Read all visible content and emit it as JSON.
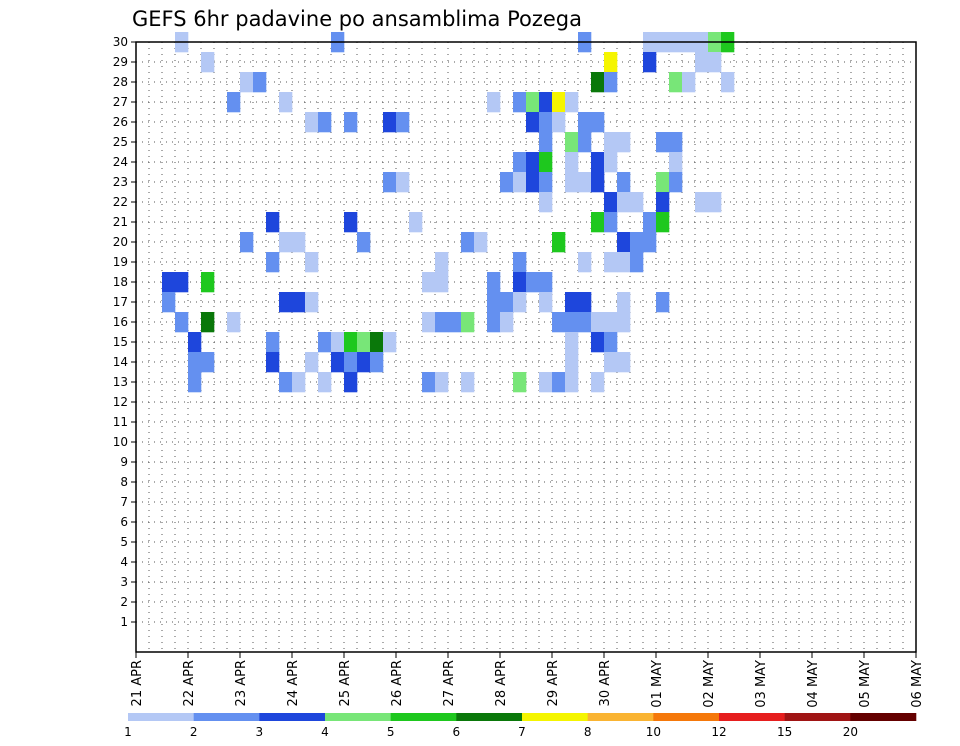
{
  "chart_data": {
    "type": "heatmap",
    "title": "GEFS 6hr padavine po ansamblima Pozega",
    "x_tick_labels": [
      "21 APR",
      "22 APR",
      "23 APR",
      "24 APR",
      "25 APR",
      "26 APR",
      "27 APR",
      "28 APR",
      "29 APR",
      "30 APR",
      "01 MAY",
      "02 MAY",
      "03 MAY",
      "04 MAY",
      "05 MAY",
      "06 MAY"
    ],
    "y_tick_labels": [
      "1",
      "2",
      "3",
      "4",
      "5",
      "6",
      "7",
      "8",
      "9",
      "10",
      "11",
      "12",
      "13",
      "14",
      "15",
      "16",
      "17",
      "18",
      "19",
      "20",
      "21",
      "22",
      "23",
      "24",
      "25",
      "26",
      "27",
      "28",
      "29",
      "30"
    ],
    "x_range_days": [
      0,
      15
    ],
    "time_step_hours": 6,
    "members_range": [
      0,
      30
    ],
    "grid": "dotted",
    "colorbar": {
      "levels": [
        "1",
        "2",
        "3",
        "4",
        "5",
        "6",
        "7",
        "8",
        "10",
        "12",
        "15",
        "20"
      ],
      "colors": [
        "#b4c8f5",
        "#6490f0",
        "#1e46dc",
        "#78e678",
        "#1ec81e",
        "#0a780a",
        "#f5f500",
        "#fab432",
        "#f5780a",
        "#e61e1e",
        "#a01414",
        "#640000"
      ]
    },
    "cells": [
      {
        "x": 3,
        "y": 30,
        "c": 0
      },
      {
        "x": 15,
        "y": 30,
        "c": 1
      },
      {
        "x": 34,
        "y": 30,
        "c": 1
      },
      {
        "x": 39,
        "y": 30,
        "c": 0
      },
      {
        "x": 40,
        "y": 30,
        "c": 0
      },
      {
        "x": 41,
        "y": 30,
        "c": 0
      },
      {
        "x": 42,
        "y": 30,
        "c": 0
      },
      {
        "x": 43,
        "y": 30,
        "c": 0
      },
      {
        "x": 44,
        "y": 30,
        "c": 3
      },
      {
        "x": 45,
        "y": 30,
        "c": 4
      },
      {
        "x": 5,
        "y": 29,
        "c": 0
      },
      {
        "x": 36,
        "y": 29,
        "c": 6
      },
      {
        "x": 39,
        "y": 29,
        "c": 2
      },
      {
        "x": 43,
        "y": 29,
        "c": 0
      },
      {
        "x": 44,
        "y": 29,
        "c": 0
      },
      {
        "x": 8,
        "y": 28,
        "c": 0
      },
      {
        "x": 9,
        "y": 28,
        "c": 1
      },
      {
        "x": 35,
        "y": 28,
        "c": 5
      },
      {
        "x": 36,
        "y": 28,
        "c": 1
      },
      {
        "x": 41,
        "y": 28,
        "c": 3
      },
      {
        "x": 42,
        "y": 28,
        "c": 0
      },
      {
        "x": 45,
        "y": 28,
        "c": 0
      },
      {
        "x": 7,
        "y": 27,
        "c": 1
      },
      {
        "x": 11,
        "y": 27,
        "c": 0
      },
      {
        "x": 27,
        "y": 27,
        "c": 0
      },
      {
        "x": 29,
        "y": 27,
        "c": 1
      },
      {
        "x": 30,
        "y": 27,
        "c": 3
      },
      {
        "x": 31,
        "y": 27,
        "c": 2
      },
      {
        "x": 32,
        "y": 27,
        "c": 6
      },
      {
        "x": 33,
        "y": 27,
        "c": 0
      },
      {
        "x": 13,
        "y": 26,
        "c": 0
      },
      {
        "x": 14,
        "y": 26,
        "c": 1
      },
      {
        "x": 16,
        "y": 26,
        "c": 1
      },
      {
        "x": 19,
        "y": 26,
        "c": 2
      },
      {
        "x": 20,
        "y": 26,
        "c": 1
      },
      {
        "x": 30,
        "y": 26,
        "c": 2
      },
      {
        "x": 31,
        "y": 26,
        "c": 1
      },
      {
        "x": 32,
        "y": 26,
        "c": 0
      },
      {
        "x": 34,
        "y": 26,
        "c": 1
      },
      {
        "x": 35,
        "y": 26,
        "c": 1
      },
      {
        "x": 31,
        "y": 25,
        "c": 1
      },
      {
        "x": 33,
        "y": 25,
        "c": 3
      },
      {
        "x": 34,
        "y": 25,
        "c": 1
      },
      {
        "x": 36,
        "y": 25,
        "c": 0
      },
      {
        "x": 37,
        "y": 25,
        "c": 0
      },
      {
        "x": 40,
        "y": 25,
        "c": 1
      },
      {
        "x": 41,
        "y": 25,
        "c": 1
      },
      {
        "x": 29,
        "y": 24,
        "c": 1
      },
      {
        "x": 30,
        "y": 24,
        "c": 2
      },
      {
        "x": 31,
        "y": 24,
        "c": 4
      },
      {
        "x": 33,
        "y": 24,
        "c": 0
      },
      {
        "x": 35,
        "y": 24,
        "c": 2
      },
      {
        "x": 36,
        "y": 24,
        "c": 0
      },
      {
        "x": 41,
        "y": 24,
        "c": 0
      },
      {
        "x": 19,
        "y": 23,
        "c": 1
      },
      {
        "x": 20,
        "y": 23,
        "c": 0
      },
      {
        "x": 28,
        "y": 23,
        "c": 1
      },
      {
        "x": 29,
        "y": 23,
        "c": 0
      },
      {
        "x": 30,
        "y": 23,
        "c": 2
      },
      {
        "x": 31,
        "y": 23,
        "c": 1
      },
      {
        "x": 33,
        "y": 23,
        "c": 0
      },
      {
        "x": 34,
        "y": 23,
        "c": 0
      },
      {
        "x": 35,
        "y": 23,
        "c": 2
      },
      {
        "x": 37,
        "y": 23,
        "c": 1
      },
      {
        "x": 40,
        "y": 23,
        "c": 3
      },
      {
        "x": 41,
        "y": 23,
        "c": 1
      },
      {
        "x": 31,
        "y": 22,
        "c": 0
      },
      {
        "x": 36,
        "y": 22,
        "c": 2
      },
      {
        "x": 37,
        "y": 22,
        "c": 0
      },
      {
        "x": 38,
        "y": 22,
        "c": 0
      },
      {
        "x": 40,
        "y": 22,
        "c": 2
      },
      {
        "x": 43,
        "y": 22,
        "c": 0
      },
      {
        "x": 44,
        "y": 22,
        "c": 0
      },
      {
        "x": 10,
        "y": 21,
        "c": 2
      },
      {
        "x": 16,
        "y": 21,
        "c": 2
      },
      {
        "x": 21,
        "y": 21,
        "c": 0
      },
      {
        "x": 35,
        "y": 21,
        "c": 4
      },
      {
        "x": 36,
        "y": 21,
        "c": 1
      },
      {
        "x": 39,
        "y": 21,
        "c": 1
      },
      {
        "x": 40,
        "y": 21,
        "c": 4
      },
      {
        "x": 8,
        "y": 20,
        "c": 1
      },
      {
        "x": 11,
        "y": 20,
        "c": 0
      },
      {
        "x": 12,
        "y": 20,
        "c": 0
      },
      {
        "x": 17,
        "y": 20,
        "c": 1
      },
      {
        "x": 25,
        "y": 20,
        "c": 1
      },
      {
        "x": 26,
        "y": 20,
        "c": 0
      },
      {
        "x": 32,
        "y": 20,
        "c": 4
      },
      {
        "x": 37,
        "y": 20,
        "c": 2
      },
      {
        "x": 38,
        "y": 20,
        "c": 1
      },
      {
        "x": 39,
        "y": 20,
        "c": 1
      },
      {
        "x": 10,
        "y": 19,
        "c": 1
      },
      {
        "x": 13,
        "y": 19,
        "c": 0
      },
      {
        "x": 23,
        "y": 19,
        "c": 0
      },
      {
        "x": 29,
        "y": 19,
        "c": 1
      },
      {
        "x": 34,
        "y": 19,
        "c": 0
      },
      {
        "x": 36,
        "y": 19,
        "c": 0
      },
      {
        "x": 37,
        "y": 19,
        "c": 0
      },
      {
        "x": 38,
        "y": 19,
        "c": 1
      },
      {
        "x": 2,
        "y": 18,
        "c": 2
      },
      {
        "x": 3,
        "y": 18,
        "c": 2
      },
      {
        "x": 5,
        "y": 18,
        "c": 4
      },
      {
        "x": 22,
        "y": 18,
        "c": 0
      },
      {
        "x": 23,
        "y": 18,
        "c": 0
      },
      {
        "x": 27,
        "y": 18,
        "c": 1
      },
      {
        "x": 29,
        "y": 18,
        "c": 2
      },
      {
        "x": 30,
        "y": 18,
        "c": 1
      },
      {
        "x": 31,
        "y": 18,
        "c": 1
      },
      {
        "x": 2,
        "y": 17,
        "c": 1
      },
      {
        "x": 11,
        "y": 17,
        "c": 2
      },
      {
        "x": 12,
        "y": 17,
        "c": 2
      },
      {
        "x": 13,
        "y": 17,
        "c": 0
      },
      {
        "x": 27,
        "y": 17,
        "c": 1
      },
      {
        "x": 28,
        "y": 17,
        "c": 1
      },
      {
        "x": 29,
        "y": 17,
        "c": 0
      },
      {
        "x": 31,
        "y": 17,
        "c": 0
      },
      {
        "x": 33,
        "y": 17,
        "c": 2
      },
      {
        "x": 34,
        "y": 17,
        "c": 2
      },
      {
        "x": 37,
        "y": 17,
        "c": 0
      },
      {
        "x": 40,
        "y": 17,
        "c": 1
      },
      {
        "x": 3,
        "y": 16,
        "c": 1
      },
      {
        "x": 5,
        "y": 16,
        "c": 5
      },
      {
        "x": 7,
        "y": 16,
        "c": 0
      },
      {
        "x": 22,
        "y": 16,
        "c": 0
      },
      {
        "x": 23,
        "y": 16,
        "c": 1
      },
      {
        "x": 24,
        "y": 16,
        "c": 1
      },
      {
        "x": 25,
        "y": 16,
        "c": 3
      },
      {
        "x": 27,
        "y": 16,
        "c": 1
      },
      {
        "x": 28,
        "y": 16,
        "c": 0
      },
      {
        "x": 32,
        "y": 16,
        "c": 1
      },
      {
        "x": 33,
        "y": 16,
        "c": 1
      },
      {
        "x": 34,
        "y": 16,
        "c": 1
      },
      {
        "x": 35,
        "y": 16,
        "c": 0
      },
      {
        "x": 36,
        "y": 16,
        "c": 0
      },
      {
        "x": 37,
        "y": 16,
        "c": 0
      },
      {
        "x": 4,
        "y": 15,
        "c": 2
      },
      {
        "x": 10,
        "y": 15,
        "c": 1
      },
      {
        "x": 14,
        "y": 15,
        "c": 1
      },
      {
        "x": 15,
        "y": 15,
        "c": 0
      },
      {
        "x": 16,
        "y": 15,
        "c": 4
      },
      {
        "x": 17,
        "y": 15,
        "c": 3
      },
      {
        "x": 18,
        "y": 15,
        "c": 5
      },
      {
        "x": 19,
        "y": 15,
        "c": 0
      },
      {
        "x": 33,
        "y": 15,
        "c": 0
      },
      {
        "x": 35,
        "y": 15,
        "c": 2
      },
      {
        "x": 36,
        "y": 15,
        "c": 1
      },
      {
        "x": 4,
        "y": 14,
        "c": 1
      },
      {
        "x": 5,
        "y": 14,
        "c": 1
      },
      {
        "x": 10,
        "y": 14,
        "c": 2
      },
      {
        "x": 13,
        "y": 14,
        "c": 0
      },
      {
        "x": 15,
        "y": 14,
        "c": 2
      },
      {
        "x": 16,
        "y": 14,
        "c": 1
      },
      {
        "x": 17,
        "y": 14,
        "c": 2
      },
      {
        "x": 18,
        "y": 14,
        "c": 1
      },
      {
        "x": 33,
        "y": 14,
        "c": 0
      },
      {
        "x": 36,
        "y": 14,
        "c": 0
      },
      {
        "x": 37,
        "y": 14,
        "c": 0
      },
      {
        "x": 4,
        "y": 13,
        "c": 1
      },
      {
        "x": 11,
        "y": 13,
        "c": 1
      },
      {
        "x": 12,
        "y": 13,
        "c": 0
      },
      {
        "x": 14,
        "y": 13,
        "c": 0
      },
      {
        "x": 16,
        "y": 13,
        "c": 2
      },
      {
        "x": 22,
        "y": 13,
        "c": 1
      },
      {
        "x": 23,
        "y": 13,
        "c": 0
      },
      {
        "x": 25,
        "y": 13,
        "c": 0
      },
      {
        "x": 29,
        "y": 13,
        "c": 3
      },
      {
        "x": 31,
        "y": 13,
        "c": 0
      },
      {
        "x": 32,
        "y": 13,
        "c": 1
      },
      {
        "x": 33,
        "y": 13,
        "c": 0
      },
      {
        "x": 35,
        "y": 13,
        "c": 0
      }
    ]
  }
}
